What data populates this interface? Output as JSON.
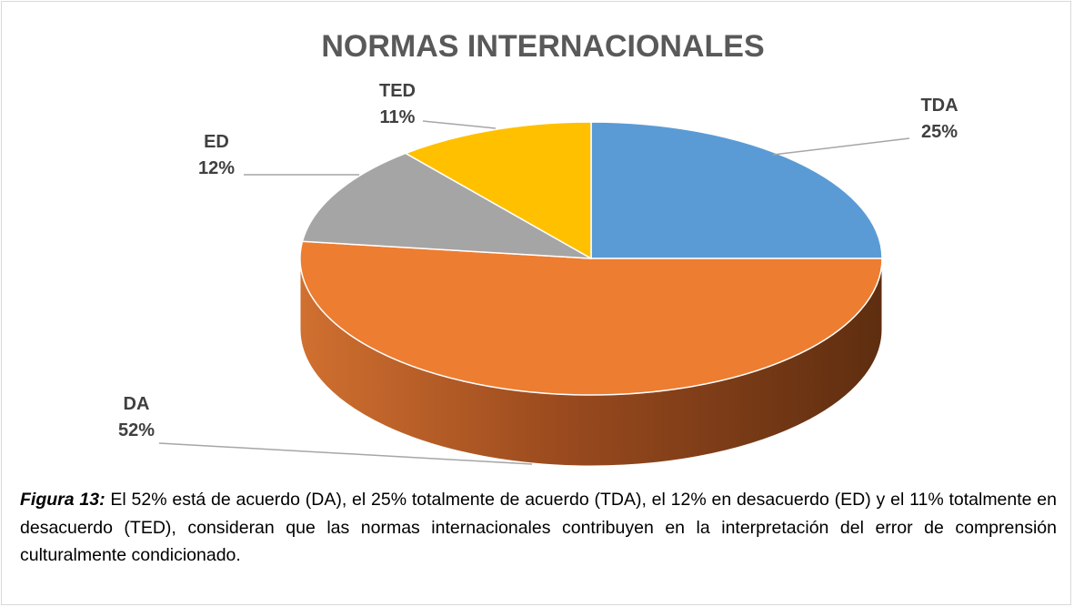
{
  "chart_data": {
    "type": "pie3d",
    "title": "NORMAS INTERNACIONALES",
    "categories": [
      "TDA",
      "DA",
      "ED",
      "TED"
    ],
    "values": [
      25,
      52,
      12,
      11
    ],
    "value_labels": [
      "25%",
      "52%",
      "12%",
      "11%"
    ],
    "colors": [
      "#5b9bd5",
      "#ed7d31",
      "#a5a5a5",
      "#ffc000"
    ]
  },
  "caption": {
    "label": "Figura 13:",
    "text": " El 52% está de acuerdo (DA), el 25% totalmente de acuerdo (TDA), el 12% en desacuerdo (ED) y el 11% totalmente en desacuerdo (TED), consideran que las normas internacionales contribuyen en la interpretación del error de comprensión culturalmente condicionado."
  }
}
